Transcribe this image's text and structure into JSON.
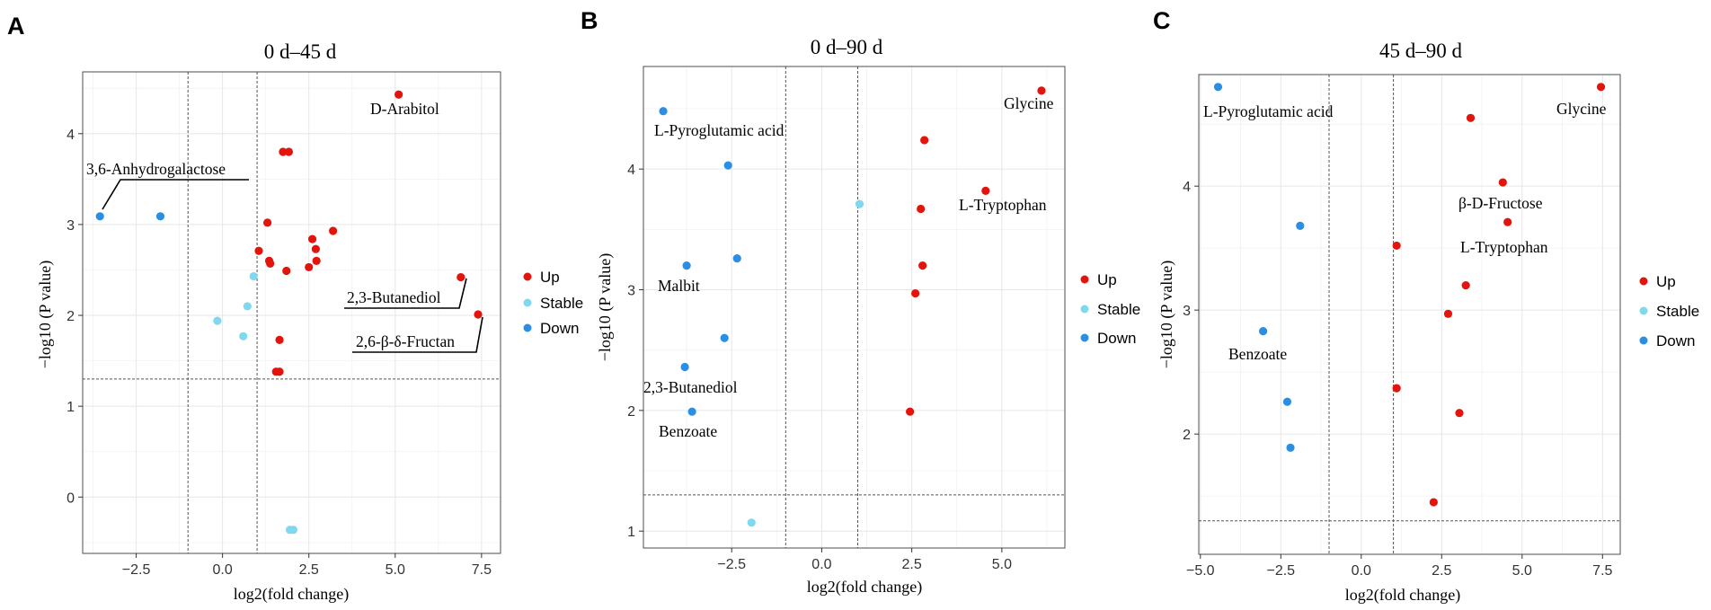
{
  "figure": {
    "legend_labels": [
      "Up",
      "Stable",
      "Down"
    ],
    "legend_keys": [
      "up",
      "stable",
      "down"
    ]
  },
  "colors": {
    "up": "#e3140b",
    "stable": "#7fd8ee",
    "down": "#2a8fe2"
  },
  "chart_data": [
    {
      "panel": "A",
      "type": "scatter",
      "title": "0 d–45 d",
      "xlabel": "log2(fold change)",
      "ylabel": "−log10 (P value)",
      "xlim": [
        -4.05,
        8.05
      ],
      "ylim": [
        -0.62,
        4.68
      ],
      "xticks": [
        -2.5,
        0.0,
        2.5,
        5.0,
        7.5
      ],
      "xtick_labels": [
        "−2.5",
        "0.0",
        "2.5",
        "5.0",
        "7.5"
      ],
      "yticks": [
        0,
        1,
        2,
        3,
        4
      ],
      "ytick_labels": [
        "0",
        "1",
        "2",
        "3",
        "4"
      ],
      "thresholds": {
        "x": [
          -1,
          1
        ],
        "y": 1.3
      },
      "grid": true,
      "points": [
        {
          "x": 5.1,
          "y": 4.43,
          "g": "up"
        },
        {
          "x": 1.75,
          "y": 3.8,
          "g": "up"
        },
        {
          "x": 1.92,
          "y": 3.8,
          "g": "up"
        },
        {
          "x": 1.3,
          "y": 3.02,
          "g": "up"
        },
        {
          "x": 3.2,
          "y": 2.93,
          "g": "up"
        },
        {
          "x": 2.6,
          "y": 2.84,
          "g": "up"
        },
        {
          "x": 2.7,
          "y": 2.73,
          "g": "up"
        },
        {
          "x": 1.05,
          "y": 2.71,
          "g": "up"
        },
        {
          "x": 1.35,
          "y": 2.6,
          "g": "up"
        },
        {
          "x": 1.38,
          "y": 2.57,
          "g": "up"
        },
        {
          "x": 2.72,
          "y": 2.6,
          "g": "up"
        },
        {
          "x": 2.5,
          "y": 2.53,
          "g": "up"
        },
        {
          "x": 1.85,
          "y": 2.49,
          "g": "up"
        },
        {
          "x": 6.9,
          "y": 2.42,
          "g": "up"
        },
        {
          "x": 7.4,
          "y": 2.01,
          "g": "up"
        },
        {
          "x": 1.65,
          "y": 1.73,
          "g": "up"
        },
        {
          "x": 1.55,
          "y": 1.38,
          "g": "up"
        },
        {
          "x": 1.65,
          "y": 1.38,
          "g": "up"
        },
        {
          "x": 0.9,
          "y": 2.43,
          "g": "stable"
        },
        {
          "x": 0.72,
          "y": 2.1,
          "g": "stable"
        },
        {
          "x": -0.15,
          "y": 1.94,
          "g": "stable"
        },
        {
          "x": 0.6,
          "y": 1.77,
          "g": "stable"
        },
        {
          "x": 1.95,
          "y": -0.36,
          "g": "stable"
        },
        {
          "x": 2.05,
          "y": -0.36,
          "g": "stable"
        },
        {
          "x": -3.55,
          "y": 3.09,
          "g": "down"
        },
        {
          "x": -1.8,
          "y": 3.09,
          "g": "down"
        }
      ],
      "annotations": [
        "D-Arabitol",
        "3,6-Anhydrogalactose",
        "2,3-Butanediol",
        "2,6-β-δ-Fructan"
      ]
    },
    {
      "panel": "B",
      "type": "scatter",
      "title": "0 d–90 d",
      "xlabel": "log2(fold change)",
      "ylabel": "−log10 (P value)",
      "xlim": [
        -4.95,
        6.75
      ],
      "ylim": [
        0.86,
        4.85
      ],
      "xticks": [
        -2.5,
        0.0,
        2.5,
        5.0
      ],
      "xtick_labels": [
        "−2.5",
        "0.0",
        "2.5",
        "5.0"
      ],
      "yticks": [
        1,
        2,
        3,
        4
      ],
      "ytick_labels": [
        "1",
        "2",
        "3",
        "4"
      ],
      "thresholds": {
        "x": [
          -1,
          1
        ],
        "y": 1.3
      },
      "grid": true,
      "points": [
        {
          "x": 6.1,
          "y": 4.65,
          "g": "up"
        },
        {
          "x": 2.85,
          "y": 4.24,
          "g": "up"
        },
        {
          "x": 4.55,
          "y": 3.82,
          "g": "up"
        },
        {
          "x": 2.75,
          "y": 3.67,
          "g": "up"
        },
        {
          "x": 2.8,
          "y": 3.2,
          "g": "up"
        },
        {
          "x": 2.6,
          "y": 2.97,
          "g": "up"
        },
        {
          "x": 2.45,
          "y": 1.99,
          "g": "up"
        },
        {
          "x": 1.05,
          "y": 3.71,
          "g": "stable"
        },
        {
          "x": -1.95,
          "y": 1.07,
          "g": "stable"
        },
        {
          "x": -4.4,
          "y": 4.48,
          "g": "down"
        },
        {
          "x": -2.6,
          "y": 4.03,
          "g": "down"
        },
        {
          "x": -2.35,
          "y": 3.26,
          "g": "down"
        },
        {
          "x": -3.75,
          "y": 3.2,
          "g": "down"
        },
        {
          "x": -2.7,
          "y": 2.6,
          "g": "down"
        },
        {
          "x": -3.8,
          "y": 2.36,
          "g": "down"
        },
        {
          "x": -3.6,
          "y": 1.99,
          "g": "down"
        }
      ],
      "annotations": [
        "Glycine",
        "L-Pyroglutamic acid",
        "L-Tryptophan",
        "Malbit",
        "2,3-Butanediol",
        "Benzoate"
      ]
    },
    {
      "panel": "C",
      "type": "scatter",
      "title": "45 d–90 d",
      "xlabel": "log2(fold change)",
      "ylabel": "−log10 (P value)",
      "xlim": [
        -5.05,
        8.05
      ],
      "ylim": [
        1.03,
        4.9
      ],
      "xticks": [
        -5.0,
        -2.5,
        0.0,
        2.5,
        5.0,
        7.5
      ],
      "xtick_labels": [
        "−5.0",
        "−2.5",
        "0.0",
        "2.5",
        "5.0",
        "7.5"
      ],
      "yticks": [
        2,
        3,
        4
      ],
      "ytick_labels": [
        "2",
        "3",
        "4"
      ],
      "thresholds": {
        "x": [
          -1,
          1
        ],
        "y": 1.3
      },
      "grid": true,
      "points": [
        {
          "x": 7.45,
          "y": 4.8,
          "g": "up"
        },
        {
          "x": 3.4,
          "y": 4.55,
          "g": "up"
        },
        {
          "x": 4.4,
          "y": 4.03,
          "g": "up"
        },
        {
          "x": 4.55,
          "y": 3.71,
          "g": "up"
        },
        {
          "x": 1.1,
          "y": 3.52,
          "g": "up"
        },
        {
          "x": 3.25,
          "y": 3.2,
          "g": "up"
        },
        {
          "x": 2.7,
          "y": 2.97,
          "g": "up"
        },
        {
          "x": 1.1,
          "y": 2.37,
          "g": "up"
        },
        {
          "x": 3.05,
          "y": 2.17,
          "g": "up"
        },
        {
          "x": 2.25,
          "y": 1.45,
          "g": "up"
        },
        {
          "x": -4.45,
          "y": 4.8,
          "g": "down"
        },
        {
          "x": -1.9,
          "y": 3.68,
          "g": "down"
        },
        {
          "x": -3.05,
          "y": 2.83,
          "g": "down"
        },
        {
          "x": -2.3,
          "y": 2.26,
          "g": "down"
        },
        {
          "x": -2.2,
          "y": 1.89,
          "g": "down"
        }
      ],
      "annotations": [
        "L-Pyroglutamic acid",
        "Glycine",
        "β-D-Fructose",
        "L-Tryptophan",
        "Benzoate"
      ]
    }
  ]
}
